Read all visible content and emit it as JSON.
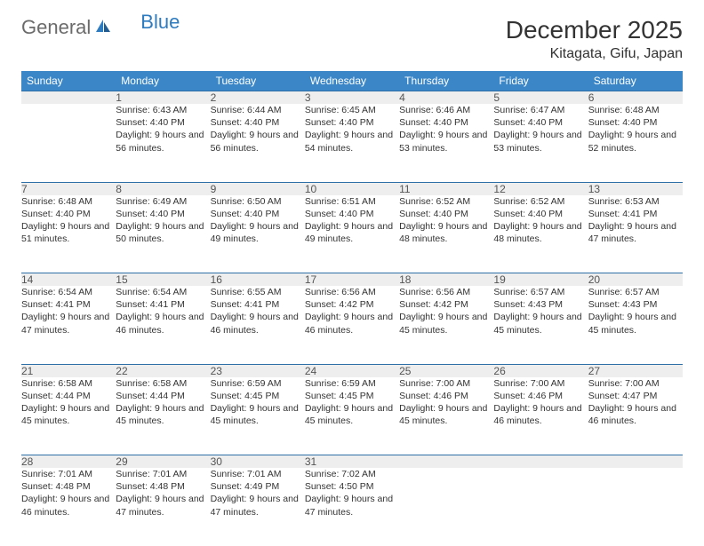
{
  "logo": {
    "part1": "General",
    "part2": "Blue"
  },
  "title": "December 2025",
  "location": "Kitagata, Gifu, Japan",
  "colors": {
    "header_bg": "#3b86c6",
    "header_text": "#ffffff",
    "daynum_bg": "#eeeeee",
    "daynum_border": "#2f6fa8",
    "body_text": "#333333",
    "logo_gray": "#6b6b6b",
    "logo_blue": "#2f7bbf"
  },
  "weekdays": [
    "Sunday",
    "Monday",
    "Tuesday",
    "Wednesday",
    "Thursday",
    "Friday",
    "Saturday"
  ],
  "start_weekday": 1,
  "days": [
    {
      "n": 1,
      "sr": "6:43 AM",
      "ss": "4:40 PM",
      "dl": "9 hours and 56 minutes."
    },
    {
      "n": 2,
      "sr": "6:44 AM",
      "ss": "4:40 PM",
      "dl": "9 hours and 56 minutes."
    },
    {
      "n": 3,
      "sr": "6:45 AM",
      "ss": "4:40 PM",
      "dl": "9 hours and 54 minutes."
    },
    {
      "n": 4,
      "sr": "6:46 AM",
      "ss": "4:40 PM",
      "dl": "9 hours and 53 minutes."
    },
    {
      "n": 5,
      "sr": "6:47 AM",
      "ss": "4:40 PM",
      "dl": "9 hours and 53 minutes."
    },
    {
      "n": 6,
      "sr": "6:48 AM",
      "ss": "4:40 PM",
      "dl": "9 hours and 52 minutes."
    },
    {
      "n": 7,
      "sr": "6:48 AM",
      "ss": "4:40 PM",
      "dl": "9 hours and 51 minutes."
    },
    {
      "n": 8,
      "sr": "6:49 AM",
      "ss": "4:40 PM",
      "dl": "9 hours and 50 minutes."
    },
    {
      "n": 9,
      "sr": "6:50 AM",
      "ss": "4:40 PM",
      "dl": "9 hours and 49 minutes."
    },
    {
      "n": 10,
      "sr": "6:51 AM",
      "ss": "4:40 PM",
      "dl": "9 hours and 49 minutes."
    },
    {
      "n": 11,
      "sr": "6:52 AM",
      "ss": "4:40 PM",
      "dl": "9 hours and 48 minutes."
    },
    {
      "n": 12,
      "sr": "6:52 AM",
      "ss": "4:40 PM",
      "dl": "9 hours and 48 minutes."
    },
    {
      "n": 13,
      "sr": "6:53 AM",
      "ss": "4:41 PM",
      "dl": "9 hours and 47 minutes."
    },
    {
      "n": 14,
      "sr": "6:54 AM",
      "ss": "4:41 PM",
      "dl": "9 hours and 47 minutes."
    },
    {
      "n": 15,
      "sr": "6:54 AM",
      "ss": "4:41 PM",
      "dl": "9 hours and 46 minutes."
    },
    {
      "n": 16,
      "sr": "6:55 AM",
      "ss": "4:41 PM",
      "dl": "9 hours and 46 minutes."
    },
    {
      "n": 17,
      "sr": "6:56 AM",
      "ss": "4:42 PM",
      "dl": "9 hours and 46 minutes."
    },
    {
      "n": 18,
      "sr": "6:56 AM",
      "ss": "4:42 PM",
      "dl": "9 hours and 45 minutes."
    },
    {
      "n": 19,
      "sr": "6:57 AM",
      "ss": "4:43 PM",
      "dl": "9 hours and 45 minutes."
    },
    {
      "n": 20,
      "sr": "6:57 AM",
      "ss": "4:43 PM",
      "dl": "9 hours and 45 minutes."
    },
    {
      "n": 21,
      "sr": "6:58 AM",
      "ss": "4:44 PM",
      "dl": "9 hours and 45 minutes."
    },
    {
      "n": 22,
      "sr": "6:58 AM",
      "ss": "4:44 PM",
      "dl": "9 hours and 45 minutes."
    },
    {
      "n": 23,
      "sr": "6:59 AM",
      "ss": "4:45 PM",
      "dl": "9 hours and 45 minutes."
    },
    {
      "n": 24,
      "sr": "6:59 AM",
      "ss": "4:45 PM",
      "dl": "9 hours and 45 minutes."
    },
    {
      "n": 25,
      "sr": "7:00 AM",
      "ss": "4:46 PM",
      "dl": "9 hours and 45 minutes."
    },
    {
      "n": 26,
      "sr": "7:00 AM",
      "ss": "4:46 PM",
      "dl": "9 hours and 46 minutes."
    },
    {
      "n": 27,
      "sr": "7:00 AM",
      "ss": "4:47 PM",
      "dl": "9 hours and 46 minutes."
    },
    {
      "n": 28,
      "sr": "7:01 AM",
      "ss": "4:48 PM",
      "dl": "9 hours and 46 minutes."
    },
    {
      "n": 29,
      "sr": "7:01 AM",
      "ss": "4:48 PM",
      "dl": "9 hours and 47 minutes."
    },
    {
      "n": 30,
      "sr": "7:01 AM",
      "ss": "4:49 PM",
      "dl": "9 hours and 47 minutes."
    },
    {
      "n": 31,
      "sr": "7:02 AM",
      "ss": "4:50 PM",
      "dl": "9 hours and 47 minutes."
    }
  ],
  "labels": {
    "sunrise": "Sunrise:",
    "sunset": "Sunset:",
    "daylight": "Daylight:"
  }
}
